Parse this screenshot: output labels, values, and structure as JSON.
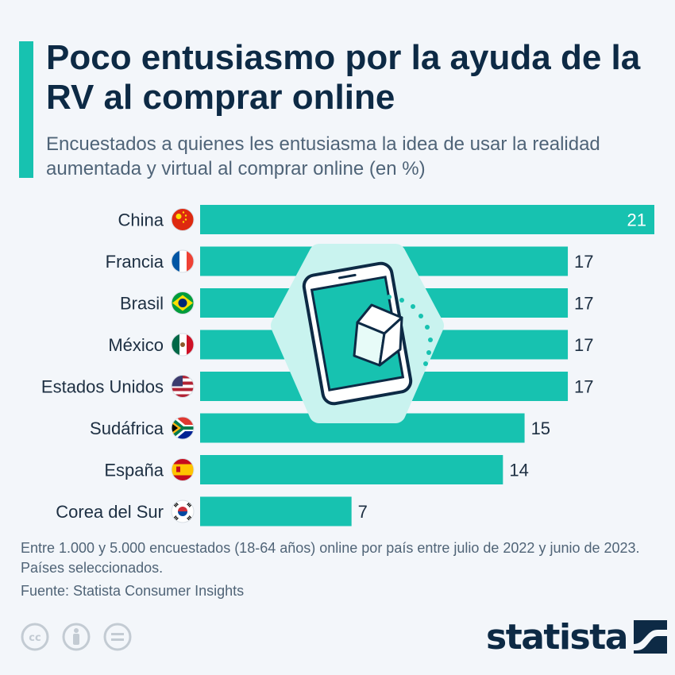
{
  "header": {
    "title": "Poco entusiasmo por la ayuda de la RV al comprar online",
    "subtitle": "Encuestados a quienes les entusiasma la idea de usar la realidad aumentada y virtual al comprar online (en %)"
  },
  "chart_data": {
    "type": "bar",
    "orientation": "horizontal",
    "categories": [
      "China",
      "Francia",
      "Brasil",
      "México",
      "Estados Unidos",
      "Sudáfrica",
      "España",
      "Corea del Sur"
    ],
    "values": [
      21,
      17,
      17,
      17,
      17,
      15,
      14,
      7
    ],
    "xlim": [
      0,
      21
    ],
    "grid": false,
    "bar_color": "#17c2b0",
    "flags": [
      "china-flag-icon",
      "france-flag-icon",
      "brazil-flag-icon",
      "mexico-flag-icon",
      "usa-flag-icon",
      "south-africa-flag-icon",
      "spain-flag-icon",
      "south-korea-flag-icon"
    ]
  },
  "footer": {
    "note": "Entre 1.000 y 5.000 encuestados (18-64 años) online por país entre julio de 2022 y junio de 2023. Países seleccionados.",
    "source": "Fuente: Statista Consumer Insights",
    "logo_text": "statista",
    "license_icons": [
      "cc-icon",
      "attribution-icon",
      "no-derivatives-icon"
    ]
  },
  "colors": {
    "accent": "#17c2b0",
    "title": "#0d2a45",
    "text": "#4f6478",
    "background": "#f3f6fa"
  }
}
